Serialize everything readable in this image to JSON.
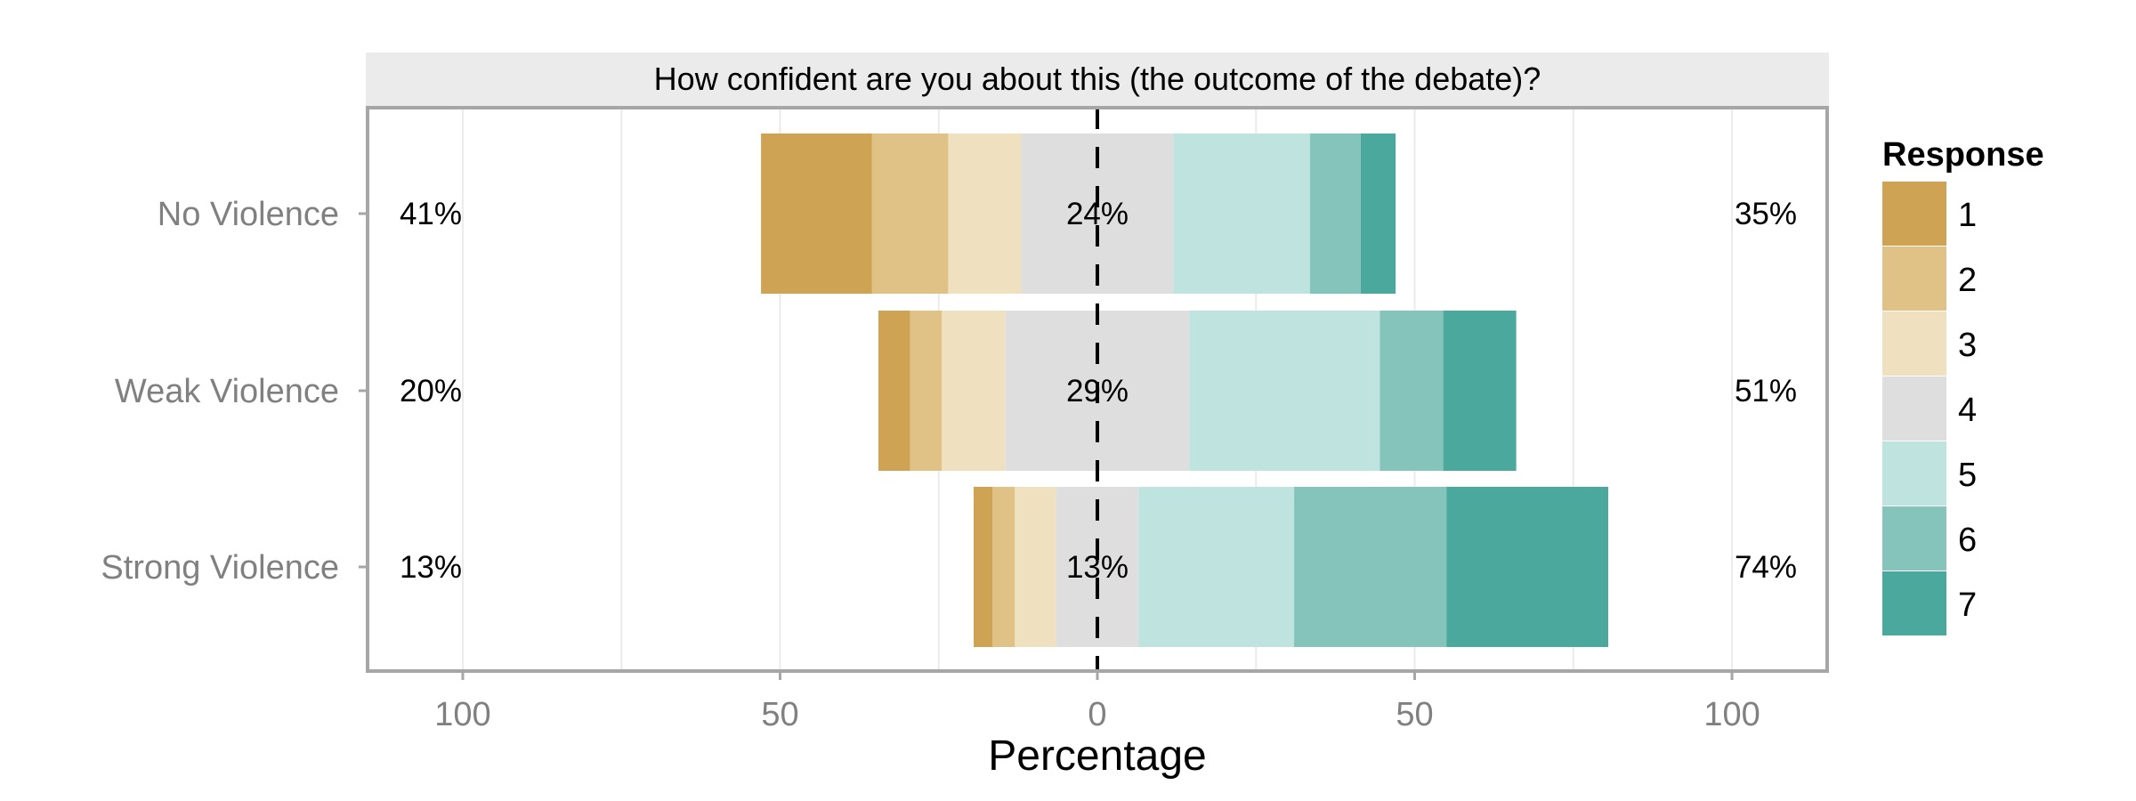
{
  "chart_data": {
    "type": "bar",
    "subtype": "diverging-stacked-likert",
    "panel_title": "How confident are you about this (the outcome of the debate)?",
    "xlabel": "Percentage",
    "xlim": [
      -115,
      115
    ],
    "x_ticks": [
      -100,
      -50,
      0,
      50,
      100
    ],
    "x_tick_labels": [
      "100",
      "50",
      "0",
      "50",
      "100"
    ],
    "grid": true,
    "legend": {
      "title": "Response",
      "position": "right",
      "items": [
        {
          "label": "1",
          "color": "#CEA354"
        },
        {
          "label": "2",
          "color": "#E0C286"
        },
        {
          "label": "3",
          "color": "#EFE0BF"
        },
        {
          "label": "4",
          "color": "#DEDEDE"
        },
        {
          "label": "5",
          "color": "#BFE3DF"
        },
        {
          "label": "6",
          "color": "#85C4BA"
        },
        {
          "label": "7",
          "color": "#4BA89D"
        }
      ]
    },
    "categories": [
      "No Violence",
      "Weak Violence",
      "Strong Violence"
    ],
    "series": [
      {
        "name": "1",
        "values": [
          17.5,
          5,
          3
        ]
      },
      {
        "name": "2",
        "values": [
          12,
          5,
          3.5
        ]
      },
      {
        "name": "3",
        "values": [
          11.5,
          10,
          6.5
        ]
      },
      {
        "name": "4",
        "values": [
          24,
          29,
          13
        ]
      },
      {
        "name": "5",
        "values": [
          21.5,
          30,
          24.5
        ]
      },
      {
        "name": "6",
        "values": [
          8,
          10,
          24
        ]
      },
      {
        "name": "7",
        "values": [
          5.5,
          11.5,
          25.5
        ]
      }
    ],
    "left_labels": [
      "41%",
      "20%",
      "13%"
    ],
    "center_labels": [
      "24%",
      "29%",
      "13%"
    ],
    "right_labels": [
      "35%",
      "51%",
      "74%"
    ]
  }
}
